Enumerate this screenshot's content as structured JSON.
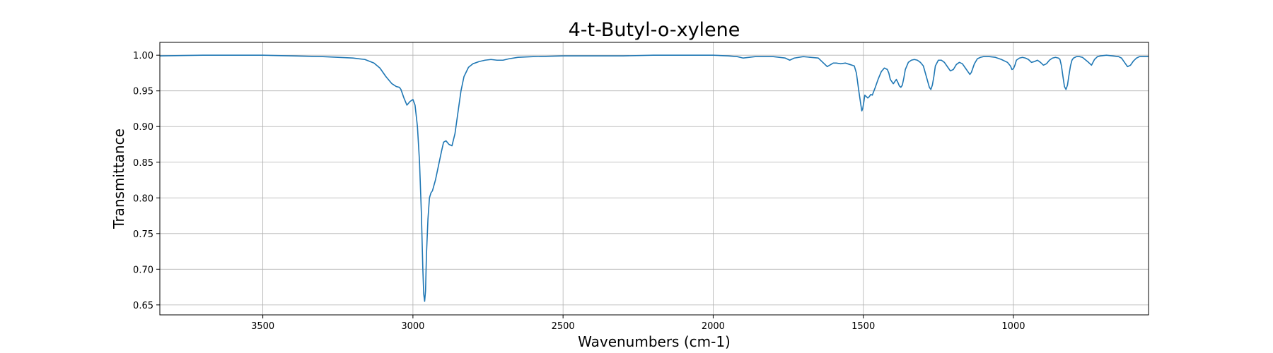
{
  "chart_data": {
    "type": "line",
    "title": "4-t-Butyl-o-xylene",
    "xlabel": "Wavenumbers (cm-1)",
    "ylabel": "Transmittance",
    "xlim": [
      3843,
      550
    ],
    "ylim": [
      0.636,
      1.018
    ],
    "x_inverted": true,
    "grid": true,
    "x_ticks": [
      3500,
      3000,
      2500,
      2000,
      1500,
      1000
    ],
    "x_tick_labels": [
      "3500",
      "3000",
      "2500",
      "2000",
      "1500",
      "1000"
    ],
    "y_ticks": [
      0.65,
      0.7,
      0.75,
      0.8,
      0.85,
      0.9,
      0.95,
      1.0
    ],
    "y_tick_labels": [
      "0.65",
      "0.70",
      "0.75",
      "0.80",
      "0.85",
      "0.90",
      "0.95",
      "1.00"
    ],
    "line_color": "#1f77b4",
    "series": [
      {
        "x": [
          3843,
          3700,
          3600,
          3500,
          3400,
          3300,
          3250,
          3200,
          3160,
          3130,
          3110,
          3090,
          3070,
          3055,
          3045,
          3040,
          3030,
          3020,
          3010,
          3000,
          2993,
          2985,
          2978,
          2972,
          2967,
          2964,
          2961,
          2958,
          2955,
          2950,
          2945,
          2940,
          2935,
          2925,
          2915,
          2905,
          2898,
          2890,
          2880,
          2870,
          2860,
          2850,
          2840,
          2830,
          2815,
          2800,
          2780,
          2760,
          2740,
          2720,
          2700,
          2680,
          2650,
          2600,
          2500,
          2400,
          2300,
          2200,
          2100,
          2000,
          1950,
          1920,
          1900,
          1880,
          1860,
          1800,
          1760,
          1745,
          1730,
          1700,
          1650,
          1635,
          1620,
          1600,
          1590,
          1575,
          1560,
          1545,
          1530,
          1523,
          1515,
          1508,
          1505,
          1502,
          1498,
          1495,
          1490,
          1485,
          1480,
          1475,
          1470,
          1460,
          1450,
          1440,
          1430,
          1420,
          1415,
          1410,
          1400,
          1395,
          1390,
          1385,
          1380,
          1375,
          1370,
          1365,
          1360,
          1350,
          1340,
          1330,
          1320,
          1310,
          1300,
          1290,
          1280,
          1275,
          1270,
          1265,
          1260,
          1250,
          1240,
          1230,
          1220,
          1210,
          1200,
          1190,
          1180,
          1170,
          1160,
          1150,
          1145,
          1140,
          1130,
          1120,
          1110,
          1100,
          1080,
          1060,
          1040,
          1020,
          1010,
          1005,
          1000,
          995,
          990,
          980,
          970,
          960,
          950,
          940,
          930,
          920,
          910,
          900,
          890,
          880,
          870,
          860,
          850,
          845,
          840,
          835,
          830,
          825,
          820,
          815,
          810,
          805,
          800,
          795,
          790,
          780,
          770,
          750,
          740,
          730,
          720,
          710,
          690,
          670,
          650,
          640,
          630,
          620,
          610,
          600,
          590,
          580,
          570,
          560,
          550
        ],
        "values": [
          0.999,
          1.0,
          1.0,
          1.0,
          0.999,
          0.998,
          0.997,
          0.996,
          0.994,
          0.989,
          0.982,
          0.97,
          0.96,
          0.956,
          0.955,
          0.952,
          0.94,
          0.93,
          0.935,
          0.938,
          0.93,
          0.9,
          0.85,
          0.78,
          0.7,
          0.665,
          0.655,
          0.67,
          0.72,
          0.77,
          0.8,
          0.807,
          0.81,
          0.825,
          0.845,
          0.865,
          0.878,
          0.88,
          0.875,
          0.873,
          0.89,
          0.92,
          0.95,
          0.97,
          0.983,
          0.988,
          0.991,
          0.993,
          0.994,
          0.993,
          0.993,
          0.995,
          0.997,
          0.998,
          0.999,
          0.999,
          0.999,
          1.0,
          1.0,
          1.0,
          0.999,
          0.998,
          0.996,
          0.997,
          0.998,
          0.998,
          0.996,
          0.993,
          0.996,
          0.998,
          0.996,
          0.99,
          0.984,
          0.989,
          0.989,
          0.988,
          0.989,
          0.987,
          0.985,
          0.975,
          0.95,
          0.93,
          0.922,
          0.925,
          0.935,
          0.944,
          0.942,
          0.94,
          0.942,
          0.945,
          0.944,
          0.955,
          0.967,
          0.977,
          0.982,
          0.98,
          0.975,
          0.966,
          0.96,
          0.963,
          0.966,
          0.962,
          0.957,
          0.955,
          0.958,
          0.968,
          0.98,
          0.99,
          0.993,
          0.994,
          0.993,
          0.99,
          0.985,
          0.97,
          0.955,
          0.952,
          0.958,
          0.97,
          0.985,
          0.993,
          0.993,
          0.99,
          0.984,
          0.978,
          0.98,
          0.987,
          0.99,
          0.988,
          0.982,
          0.976,
          0.973,
          0.976,
          0.988,
          0.995,
          0.997,
          0.998,
          0.998,
          0.997,
          0.994,
          0.99,
          0.985,
          0.98,
          0.981,
          0.986,
          0.993,
          0.996,
          0.997,
          0.996,
          0.994,
          0.99,
          0.991,
          0.993,
          0.99,
          0.986,
          0.988,
          0.993,
          0.996,
          0.997,
          0.996,
          0.994,
          0.985,
          0.97,
          0.956,
          0.952,
          0.958,
          0.972,
          0.985,
          0.993,
          0.996,
          0.997,
          0.998,
          0.998,
          0.997,
          0.99,
          0.986,
          0.994,
          0.998,
          0.999,
          1.0,
          0.999,
          0.998,
          0.996,
          0.99,
          0.984,
          0.986,
          0.992,
          0.996,
          0.998,
          0.998,
          0.998,
          0.998
        ]
      }
    ]
  }
}
